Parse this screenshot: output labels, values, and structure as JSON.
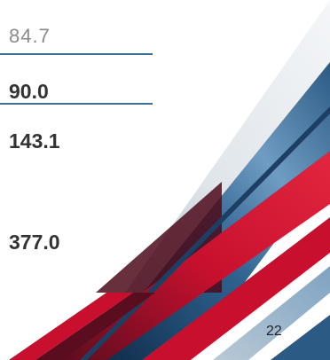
{
  "values": {
    "item1": "84.7",
    "item2": "90.0",
    "item3": "143.1",
    "item4": "377.0"
  },
  "footer": {
    "page_number": "22"
  },
  "colors": {
    "rule": "#3e6f96",
    "stripe_red": "#c8102e",
    "stripe_dark_red": "#5a0d1e",
    "stripe_blue": "#2b5a85",
    "stripe_light_blue": "#9fb8cc",
    "stripe_grey": "#c9d2da"
  }
}
